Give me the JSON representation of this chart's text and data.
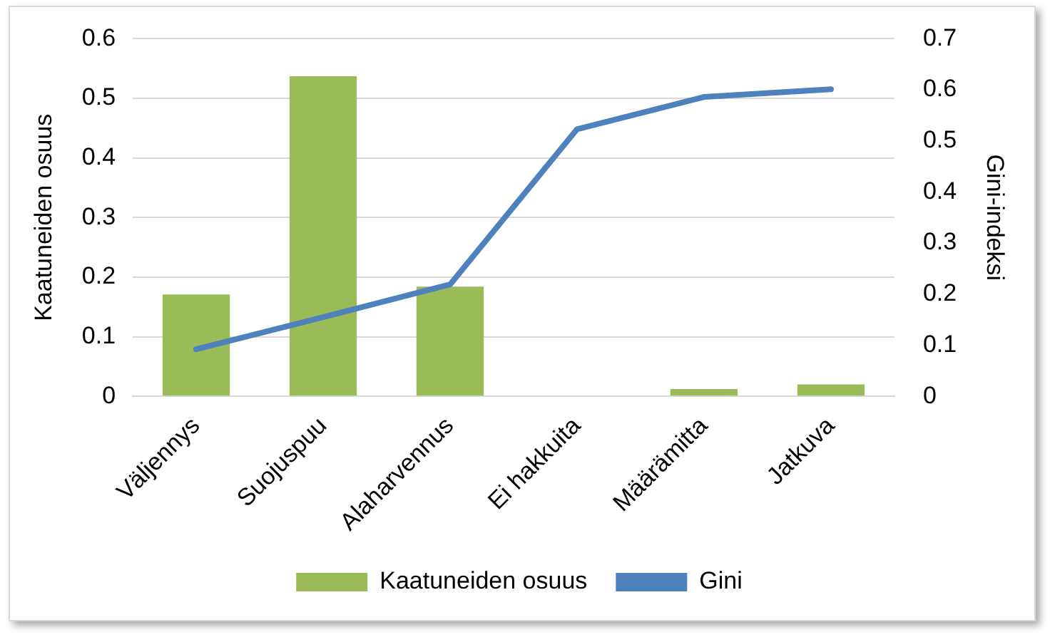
{
  "chart_data": {
    "type": "bar",
    "categories": [
      "Väljennys",
      "Suojuspuu",
      "Alaharvennus",
      "Ei hakkuita",
      "Määrämitta",
      "Jatkuva"
    ],
    "ylabel": "Kaatuneiden osuus",
    "y2label": "Gini-indeksi",
    "series": [
      {
        "name": "Kaatuneiden osuus",
        "color": "#9bbb59",
        "values": [
          0.171,
          0.537,
          0.184,
          0,
          0.012,
          0.02
        ]
      },
      {
        "name": "Gini",
        "type": "line",
        "axis": "y2",
        "color": "#4f81bd",
        "values": [
          0.092,
          0.155,
          0.219,
          0.523,
          0.586,
          0.601
        ]
      }
    ],
    "ylim": [
      0,
      0.6
    ],
    "yticks": [
      0,
      0.1,
      0.2,
      0.3,
      0.4,
      0.5,
      0.6
    ],
    "y2lim": [
      0,
      0.7
    ],
    "y2ticks": [
      0,
      0.1,
      0.2,
      0.3,
      0.4,
      0.5,
      0.6,
      0.7
    ],
    "grid": "y",
    "legend": "bottom",
    "marker": "none",
    "line_style": "solid"
  }
}
